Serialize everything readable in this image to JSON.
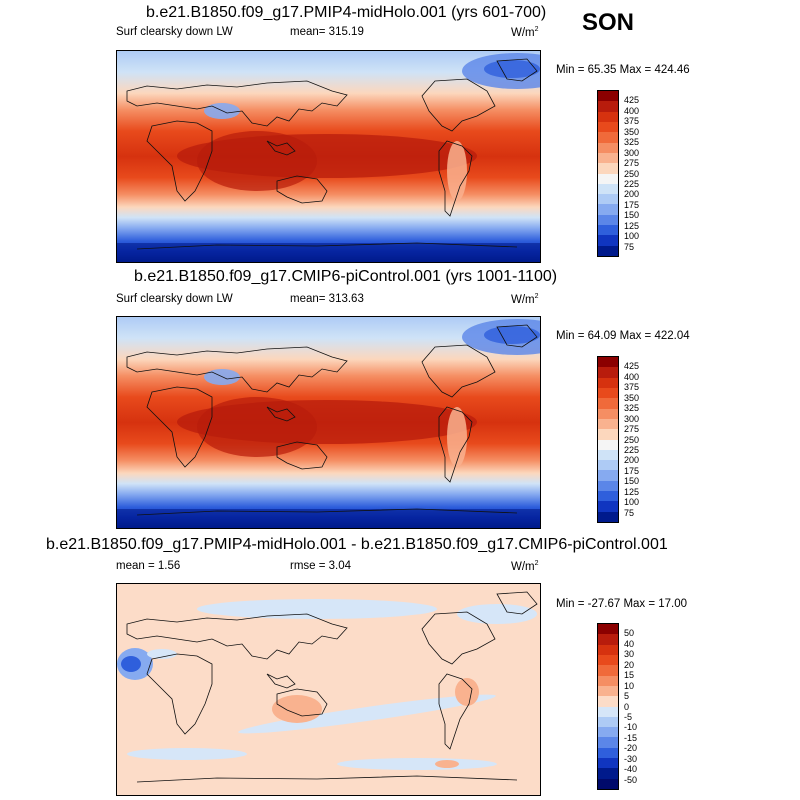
{
  "season": "SON",
  "panels": [
    {
      "title": "b.e21.B1850.f09_g17.PMIP4-midHolo.001 (yrs 601-700)",
      "left_label": "Surf clearsky down LW",
      "center_label": "mean= 315.19",
      "units": "W/m",
      "units_sup": "2",
      "minmax": "Min =  65.35 Max = 424.46",
      "kind": "abs"
    },
    {
      "title": "b.e21.B1850.f09_g17.CMIP6-piControl.001 (yrs 1001-1100)",
      "left_label": "Surf clearsky down LW",
      "center_label": "mean= 313.63",
      "units": "W/m",
      "units_sup": "2",
      "minmax": "Min =  64.09 Max = 422.04",
      "kind": "abs"
    },
    {
      "title": "b.e21.B1850.f09_g17.PMIP4-midHolo.001 - b.e21.B1850.f09_g17.CMIP6-piControl.001",
      "left_label": "mean =   1.56",
      "center_label": "rmse =   3.04",
      "units": "W/m",
      "units_sup": "2",
      "minmax": "Min = -27.67 Max =  17.00",
      "kind": "diff"
    }
  ],
  "colorbars": {
    "abs": {
      "labels": [
        "425",
        "400",
        "375",
        "350",
        "325",
        "300",
        "275",
        "250",
        "225",
        "200",
        "175",
        "150",
        "125",
        "100",
        "75"
      ],
      "colors": [
        "#8b0000",
        "#b81c0c",
        "#d6320f",
        "#e84a1c",
        "#f06a3a",
        "#f58e63",
        "#f9b28f",
        "#fcd7bd",
        "#f5f5f5",
        "#cfe3f7",
        "#aecbf5",
        "#86aaf0",
        "#5b86e8",
        "#2f5fdc",
        "#1035c0",
        "#001a8c"
      ]
    },
    "diff": {
      "labels": [
        "50",
        "40",
        "30",
        "20",
        "15",
        "10",
        "5",
        "0",
        "-5",
        "-10",
        "-15",
        "-20",
        "-30",
        "-40",
        "-50"
      ],
      "colors": [
        "#8b0000",
        "#b81c0c",
        "#d6320f",
        "#e84a1c",
        "#f06a3a",
        "#f58e63",
        "#f9b28f",
        "#fcdcc8",
        "#d6e6f8",
        "#aecbf5",
        "#86aaf0",
        "#5b86e8",
        "#2f5fdc",
        "#1035c0",
        "#001a8c",
        "#000a6b"
      ]
    }
  }
}
